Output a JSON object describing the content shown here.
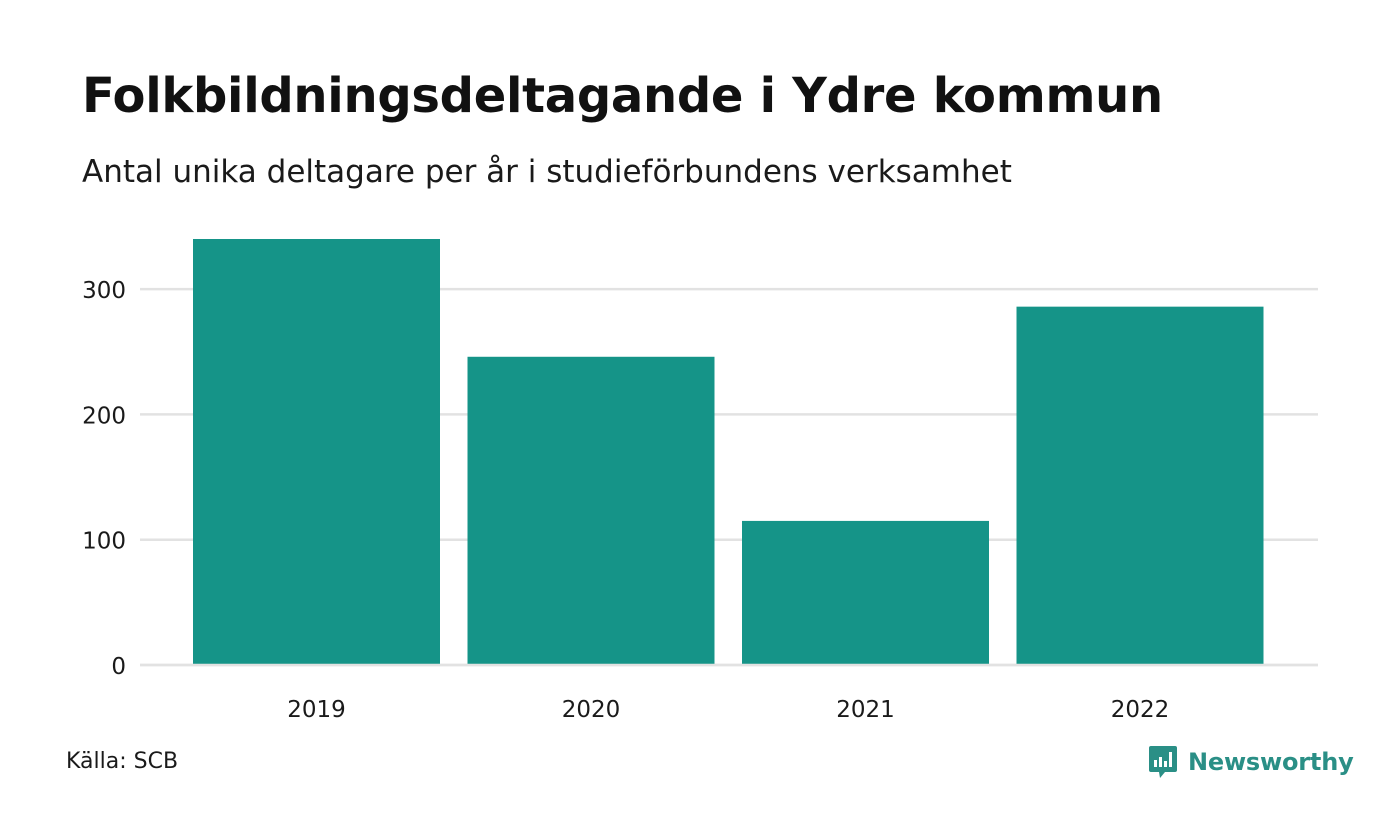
{
  "header": {
    "title": "Folkbildningsdeltagande i Ydre kommun",
    "subtitle": "Antal unika deltagare per år i studieförbundens verksamhet"
  },
  "footer": {
    "source": "Källa: SCB",
    "brand": "Newsworthy"
  },
  "colors": {
    "bar": "#159488",
    "grid": "#e2e2e2",
    "brand": "#2a8f86"
  },
  "chart_data": {
    "type": "bar",
    "categories": [
      "2019",
      "2020",
      "2021",
      "2022"
    ],
    "values": [
      340,
      246,
      115,
      286
    ],
    "ylim": [
      0,
      340
    ],
    "yticks": [
      0,
      100,
      200,
      300
    ],
    "grid": true,
    "legend": "none"
  }
}
